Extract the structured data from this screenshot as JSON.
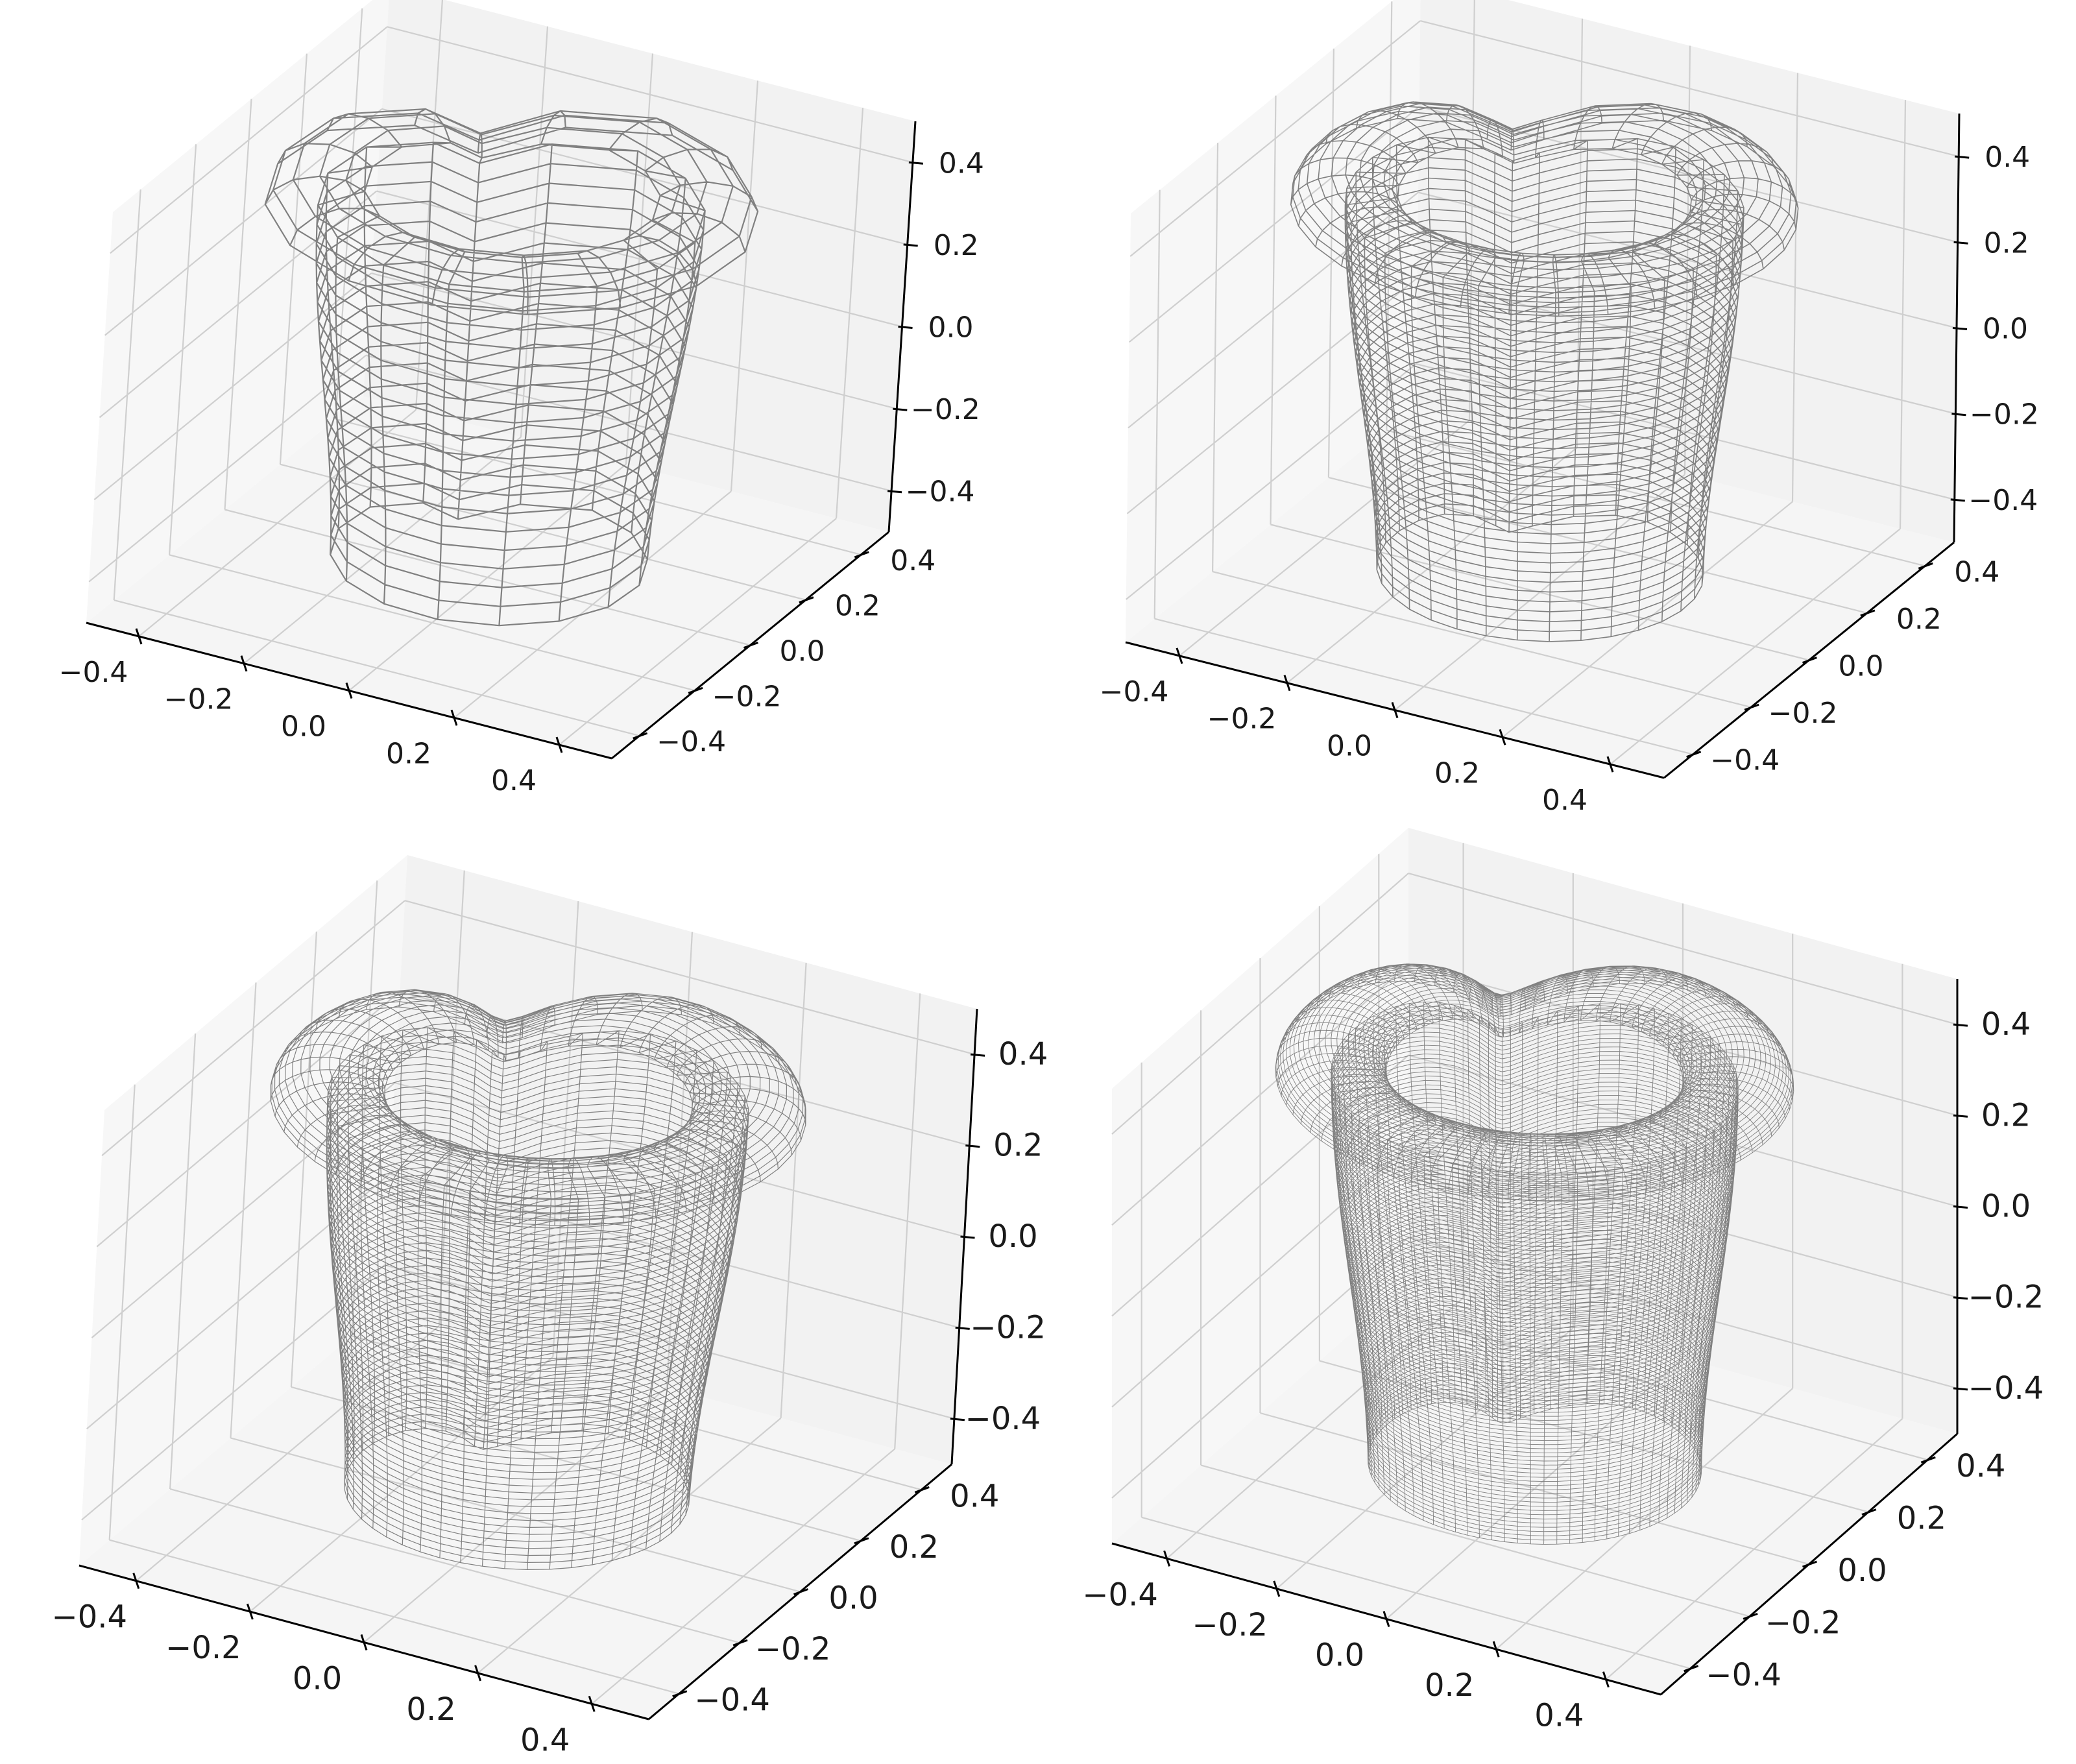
{
  "chart_data": [
    {
      "type": "wireframe",
      "panel": "top-left",
      "mesh_resolution": [
        16,
        24
      ],
      "xlim": [
        -0.5,
        0.5
      ],
      "ylim": [
        -0.5,
        0.5
      ],
      "zlim": [
        -0.5,
        0.5
      ],
      "x_ticks": [
        "−0.4",
        "−0.2",
        "0.0",
        "0.2",
        "0.4"
      ],
      "y_ticks": [
        "−0.4",
        "−0.2",
        "0.0",
        "0.2",
        "0.4"
      ],
      "z_ticks": [
        "−0.4",
        "−0.2",
        "0.0",
        "0.2",
        "0.4"
      ],
      "grid": true,
      "wire_color": "#808080",
      "pane_color": "#f2f2f2"
    },
    {
      "type": "wireframe",
      "panel": "top-right",
      "mesh_resolution": [
        32,
        48
      ],
      "xlim": [
        -0.5,
        0.5
      ],
      "ylim": [
        -0.5,
        0.5
      ],
      "zlim": [
        -0.5,
        0.5
      ],
      "x_ticks": [
        "−0.4",
        "−0.2",
        "0.0",
        "0.2",
        "0.4"
      ],
      "y_ticks": [
        "−0.4",
        "−0.2",
        "0.0",
        "0.2",
        "0.4"
      ],
      "z_ticks": [
        "−0.4",
        "−0.2",
        "0.0",
        "0.2",
        "0.4"
      ],
      "grid": true,
      "wire_color": "#808080",
      "pane_color": "#f2f2f2"
    },
    {
      "type": "wireframe",
      "panel": "bottom-left",
      "mesh_resolution": [
        48,
        72
      ],
      "xlim": [
        -0.5,
        0.5
      ],
      "ylim": [
        -0.5,
        0.5
      ],
      "zlim": [
        -0.5,
        0.5
      ],
      "x_ticks": [
        "−0.4",
        "−0.2",
        "0.0",
        "0.2",
        "0.4"
      ],
      "y_ticks": [
        "−0.4",
        "−0.2",
        "0.0",
        "0.2",
        "0.4"
      ],
      "z_ticks": [
        "−0.4",
        "−0.2",
        "0.0",
        "0.2",
        "0.4"
      ],
      "grid": true,
      "wire_color": "#808080",
      "pane_color": "#f2f2f2"
    },
    {
      "type": "wireframe",
      "panel": "bottom-right",
      "mesh_resolution": [
        80,
        120
      ],
      "xlim": [
        -0.5,
        0.5
      ],
      "ylim": [
        -0.5,
        0.5
      ],
      "zlim": [
        -0.5,
        0.5
      ],
      "x_ticks": [
        "−0.4",
        "−0.2",
        "0.0",
        "0.2",
        "0.4"
      ],
      "y_ticks": [
        "−0.4",
        "−0.2",
        "0.0",
        "0.2",
        "0.4"
      ],
      "z_ticks": [
        "−0.4",
        "−0.2",
        "0.0",
        "0.2",
        "0.4"
      ],
      "grid": true,
      "wire_color": "#808080",
      "pane_color": "#f2f2f2"
    }
  ]
}
